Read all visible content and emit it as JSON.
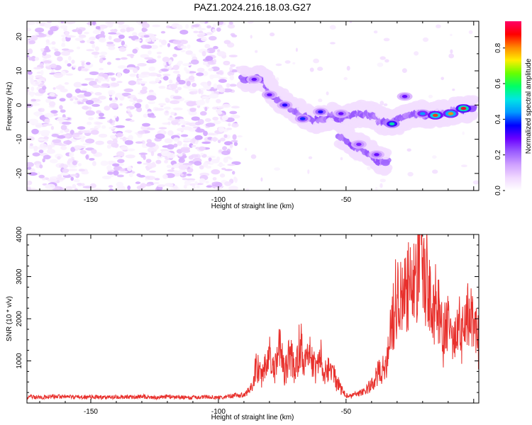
{
  "title": "PAZ1.2024.216.18.03.G27",
  "chart_data": [
    {
      "type": "heatmap",
      "xlabel": "Height of straight line (km)",
      "ylabel": "Frequency (Hz)",
      "xlim": [
        -175,
        2
      ],
      "ylim": [
        -25,
        24.5
      ],
      "xticks": [
        -150,
        -100,
        -50
      ],
      "yticks": [
        -20,
        -10,
        0,
        10,
        20
      ],
      "colorbar": {
        "label": "Normalized spectral amplitude",
        "ticks": [
          0.0,
          0.2,
          0.4,
          0.6,
          0.8
        ],
        "range": [
          0.0,
          0.95
        ],
        "colors": [
          "#ffffff",
          "#f0d8ff",
          "#cfa0ff",
          "#9a5cff",
          "#6a00ff",
          "#0000ff",
          "#0099ff",
          "#00e5e5",
          "#00ff66",
          "#66ff00",
          "#ffee00",
          "#ff8800",
          "#ff0000",
          "#ff0066"
        ]
      },
      "noise_region": {
        "x": [
          -175,
          -93
        ],
        "y": [
          -25,
          24.5
        ],
        "amplitude_range": [
          0.02,
          0.15
        ]
      },
      "ridges": [
        {
          "points": [
            [
              -90,
              7.5
            ],
            [
              -82,
              7.5
            ],
            [
              -78,
              2.5
            ],
            [
              -70,
              -1.5
            ],
            [
              -62,
              -4.5
            ],
            [
              -55,
              -3.0
            ],
            [
              -50,
              -4.0
            ],
            [
              -45,
              -2.5
            ],
            [
              -40,
              -3.0
            ],
            [
              -35,
              -5.0
            ],
            [
              -30,
              -5.0
            ],
            [
              -25,
              -3.0
            ],
            [
              -20,
              -2.5
            ],
            [
              -15,
              -3.0
            ],
            [
              -10,
              -2.0
            ],
            [
              -5,
              -1.5
            ],
            [
              0,
              -1.0
            ]
          ]
        },
        {
          "points": [
            [
              -52,
              -9.0
            ],
            [
              -47,
              -11.5
            ],
            [
              -42,
              -13.0
            ],
            [
              -38,
              -15.5
            ],
            [
              -34,
              -17.0
            ]
          ]
        }
      ],
      "hot_spots": [
        {
          "x": -86,
          "y": 7.5,
          "amp": 0.3
        },
        {
          "x": -80,
          "y": 3.0,
          "amp": 0.3
        },
        {
          "x": -74,
          "y": 0.0,
          "amp": 0.35
        },
        {
          "x": -67,
          "y": -4.0,
          "amp": 0.38
        },
        {
          "x": -60,
          "y": -2.0,
          "amp": 0.35
        },
        {
          "x": -52,
          "y": -2.5,
          "amp": 0.3
        },
        {
          "x": -45,
          "y": -11.5,
          "amp": 0.28
        },
        {
          "x": -38,
          "y": -14.5,
          "amp": 0.3
        },
        {
          "x": -32,
          "y": -5.5,
          "amp": 0.55
        },
        {
          "x": -27,
          "y": 2.5,
          "amp": 0.3
        },
        {
          "x": -20,
          "y": -2.5,
          "amp": 0.45
        },
        {
          "x": -15,
          "y": -3.0,
          "amp": 0.85
        },
        {
          "x": -9,
          "y": -2.5,
          "amp": 0.8
        },
        {
          "x": -4,
          "y": -1.0,
          "amp": 0.9
        }
      ]
    },
    {
      "type": "line",
      "xlabel": "Height of straight line (km)",
      "ylabel": "SNR (10 * v/v)",
      "xlim": [
        -175,
        2
      ],
      "ylim": [
        0,
        4000
      ],
      "xticks": [
        -150,
        -100,
        -50
      ],
      "yticks": [
        1000,
        2000,
        3000,
        4000
      ],
      "color": "#e8302c",
      "series": [
        {
          "x": [
            -175,
            -170,
            -165,
            -160,
            -155,
            -150,
            -145,
            -140,
            -135,
            -130,
            -125,
            -120,
            -115,
            -110,
            -105,
            -100,
            -95,
            -90,
            -87,
            -85,
            -83,
            -80,
            -78,
            -76,
            -74,
            -72,
            -70,
            -68,
            -66,
            -64,
            -62,
            -60,
            -58,
            -56,
            -54,
            -52,
            -50,
            -48,
            -45,
            -42,
            -40,
            -38,
            -36,
            -34,
            -32,
            -30,
            -28,
            -26,
            -24,
            -22,
            -20,
            -18,
            -16,
            -14,
            -12,
            -10,
            -8,
            -6,
            -4,
            -2,
            0,
            2
          ],
          "y": [
            150,
            140,
            160,
            150,
            140,
            150,
            130,
            150,
            140,
            160,
            130,
            150,
            140,
            130,
            150,
            130,
            170,
            190,
            350,
            900,
            600,
            1100,
            800,
            1300,
            700,
            1200,
            700,
            1450,
            900,
            1250,
            800,
            1150,
            700,
            950,
            500,
            350,
            180,
            150,
            250,
            300,
            450,
            650,
            800,
            900,
            1900,
            2800,
            2300,
            3000,
            2500,
            3200,
            3900,
            2800,
            2200,
            2400,
            1500,
            2000,
            1500,
            1800,
            1600,
            2100,
            1800,
            1400
          ]
        }
      ]
    }
  ]
}
